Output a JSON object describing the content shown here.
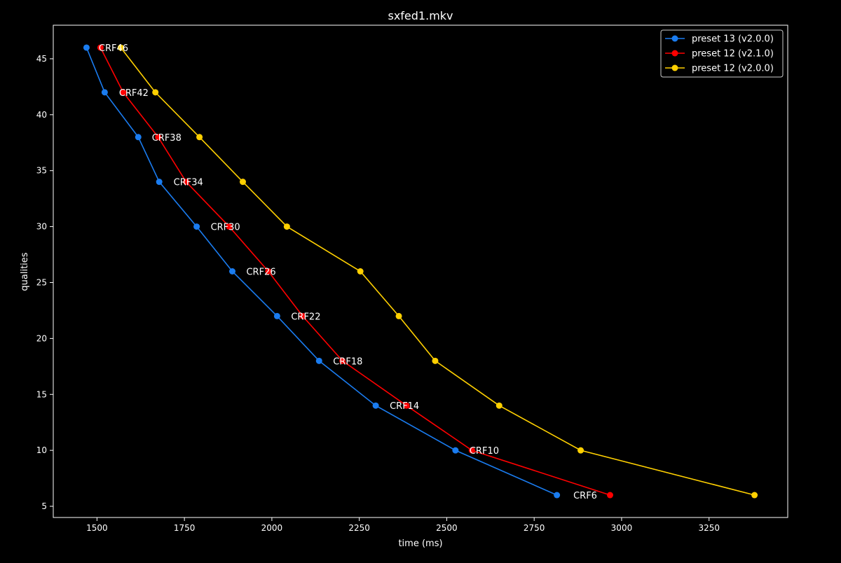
{
  "chart_data": {
    "type": "line",
    "title": "sxfed1.mkv",
    "xlabel": "time (ms)",
    "ylabel": "qualities",
    "xlim": [
      1375,
      3475
    ],
    "ylim": [
      4,
      48
    ],
    "xticks": [
      1500,
      1750,
      2000,
      2250,
      2500,
      2750,
      3000,
      3250
    ],
    "yticks": [
      5,
      10,
      15,
      20,
      25,
      30,
      35,
      40,
      45
    ],
    "grid": false,
    "legend": "top-right",
    "annotations": [
      {
        "text": "CRF46",
        "x": 1505,
        "y": 46
      },
      {
        "text": "CRF42",
        "x": 1563,
        "y": 42
      },
      {
        "text": "CRF38",
        "x": 1657,
        "y": 38
      },
      {
        "text": "CRF34",
        "x": 1719,
        "y": 34
      },
      {
        "text": "CRF30",
        "x": 1825,
        "y": 30
      },
      {
        "text": "CRF26",
        "x": 1927,
        "y": 26
      },
      {
        "text": "CRF22",
        "x": 2055,
        "y": 22
      },
      {
        "text": "CRF18",
        "x": 2175,
        "y": 18
      },
      {
        "text": "CRF14",
        "x": 2337,
        "y": 14
      },
      {
        "text": "CRF10",
        "x": 2565,
        "y": 10
      },
      {
        "text": "CRF6",
        "x": 2862,
        "y": 6
      }
    ],
    "series": [
      {
        "name": "preset 13 (v2.0.0)",
        "color": "#1a7cf0",
        "x": [
          1470,
          1522,
          1618,
          1678,
          1785,
          1887,
          2015,
          2135,
          2297,
          2525,
          2815
        ],
        "y": [
          46,
          42,
          38,
          34,
          30,
          26,
          22,
          18,
          14,
          10,
          6
        ]
      },
      {
        "name": "preset 12 (v2.1.0)",
        "color": "#ff0000",
        "x": [
          1510,
          1575,
          1675,
          1755,
          1878,
          1990,
          2088,
          2202,
          2385,
          2572,
          2967
        ],
        "y": [
          46,
          42,
          38,
          34,
          30,
          26,
          22,
          18,
          14,
          10,
          6
        ]
      },
      {
        "name": "preset 12 (v2.0.0)",
        "color": "#ffd000",
        "x": [
          1568,
          1667,
          1793,
          1917,
          2043,
          2253,
          2363,
          2467,
          2650,
          2883,
          3380
        ],
        "y": [
          46,
          42,
          38,
          34,
          30,
          26,
          22,
          18,
          14,
          10,
          6
        ]
      }
    ]
  }
}
